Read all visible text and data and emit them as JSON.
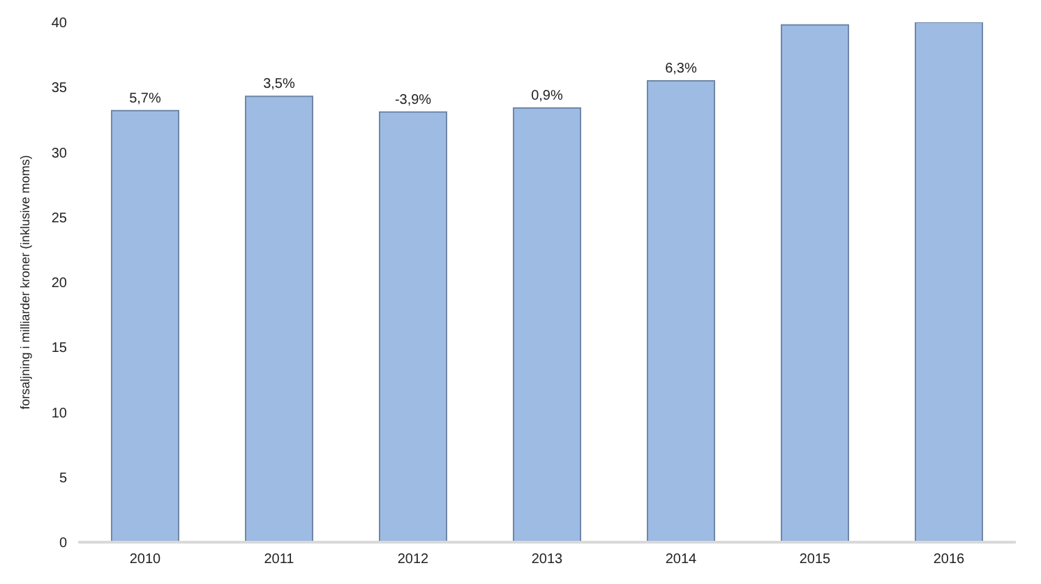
{
  "chart_data": {
    "type": "bar",
    "ylabel": "forsaljning i milliarder kroner (inklusive moms)",
    "categories": [
      "2010",
      "2011",
      "2012",
      "2013",
      "2014",
      "2015",
      "2016"
    ],
    "series": [
      {
        "color": "#9dbbe3",
        "values": [
          33.2,
          34.3,
          33.1,
          33.4,
          35.5,
          39.8,
          40
        ]
      }
    ],
    "annotations": [
      {
        "text": "5,7%",
        "x": "2010",
        "y": 33.2
      },
      {
        "text": "3,5%",
        "x": "2011",
        "y": 34.3
      },
      {
        "text": "-3,9%",
        "x": "2012",
        "y": 33.1
      },
      {
        "text": "0,9%",
        "x": "2013",
        "y": 33.4
      },
      {
        "text": "6,3%",
        "x": "2014",
        "y": 35.5
      }
    ],
    "ylim": [
      0,
      40
    ],
    "yticks": [
      0,
      5,
      10,
      15,
      20,
      25,
      30,
      35,
      40
    ],
    "grid": false,
    "legend": false
  }
}
